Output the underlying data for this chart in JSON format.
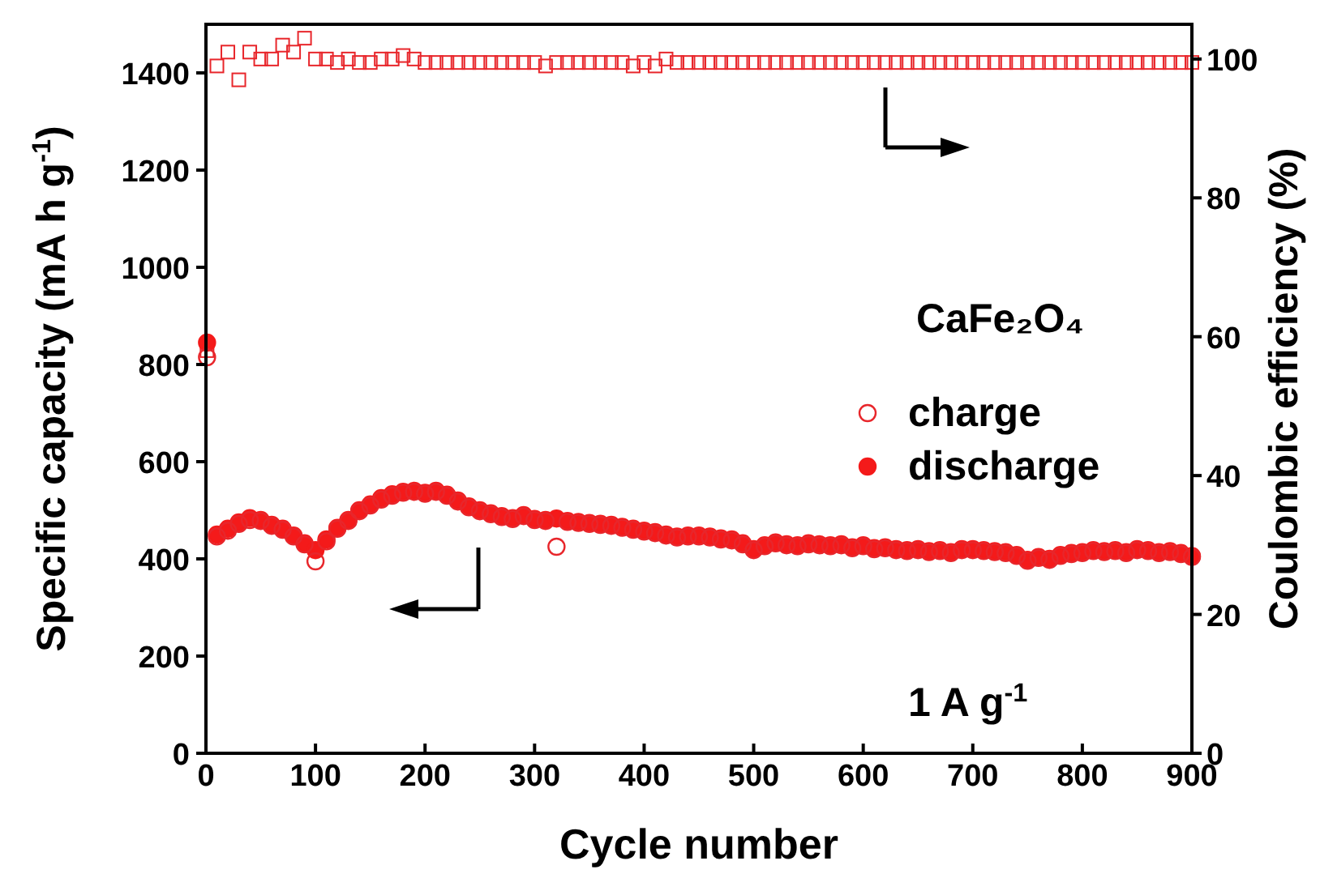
{
  "chart_data": {
    "type": "scatter",
    "xlabel": "Cycle number",
    "ylabel": "Specific capacity (mA h g$^{-1}$)",
    "y2label": "Coulombic efficiency (%)",
    "xlim": [
      0,
      900
    ],
    "xticks": [
      0,
      100,
      200,
      300,
      400,
      500,
      600,
      700,
      800,
      900
    ],
    "ylim": [
      0,
      1500
    ],
    "yticks": [
      0,
      200,
      400,
      600,
      800,
      1000,
      1200,
      1400
    ],
    "y2lim": [
      0,
      105
    ],
    "y2ticks": [
      0,
      20,
      40,
      60,
      80,
      100
    ],
    "x": [
      1,
      10,
      20,
      30,
      40,
      50,
      60,
      70,
      80,
      90,
      100,
      110,
      120,
      130,
      140,
      150,
      160,
      170,
      180,
      190,
      200,
      210,
      220,
      230,
      240,
      250,
      260,
      270,
      280,
      290,
      300,
      310,
      320,
      330,
      340,
      350,
      360,
      370,
      380,
      390,
      400,
      410,
      420,
      430,
      440,
      450,
      460,
      470,
      480,
      490,
      500,
      510,
      520,
      530,
      540,
      550,
      560,
      570,
      580,
      590,
      600,
      610,
      620,
      630,
      640,
      650,
      660,
      670,
      680,
      690,
      700,
      710,
      720,
      730,
      740,
      750,
      760,
      770,
      780,
      790,
      800,
      810,
      820,
      830,
      840,
      850,
      860,
      870,
      880,
      890,
      900
    ],
    "series": [
      {
        "name": "charge",
        "color": "#e8262b",
        "marker": "circle",
        "values": [
          815,
          446,
          458,
          472,
          480,
          478,
          468,
          460,
          446,
          430,
          395,
          436,
          462,
          478,
          498,
          510,
          522,
          530,
          536,
          538,
          534,
          538,
          530,
          518,
          506,
          498,
          492,
          486,
          482,
          488,
          480,
          478,
          425,
          476,
          474,
          472,
          470,
          468,
          464,
          460,
          456,
          453,
          448,
          444,
          446,
          446,
          444,
          440,
          438,
          430,
          418,
          426,
          432,
          428,
          426,
          430,
          428,
          426,
          428,
          422,
          426,
          420,
          422,
          418,
          416,
          418,
          414,
          416,
          412,
          418,
          418,
          416,
          414,
          412,
          406,
          396,
          402,
          398,
          406,
          410,
          412,
          416,
          414,
          416,
          412,
          418,
          416,
          412,
          414,
          410,
          404
        ]
      },
      {
        "name": "discharge",
        "color": "#f41a1a",
        "marker": "circle",
        "values": [
          845,
          450,
          462,
          475,
          484,
          480,
          470,
          462,
          448,
          432,
          418,
          440,
          464,
          480,
          500,
          512,
          525,
          533,
          538,
          540,
          536,
          540,
          532,
          520,
          508,
          500,
          494,
          488,
          484,
          490,
          482,
          480,
          483,
          478,
          476,
          474,
          472,
          470,
          466,
          462,
          458,
          455,
          450,
          446,
          448,
          448,
          446,
          442,
          440,
          432,
          420,
          428,
          434,
          430,
          428,
          432,
          430,
          428,
          430,
          424,
          428,
          422,
          424,
          420,
          418,
          420,
          416,
          418,
          414,
          420,
          420,
          418,
          416,
          414,
          408,
          398,
          404,
          400,
          408,
          412,
          414,
          418,
          416,
          418,
          414,
          420,
          418,
          414,
          416,
          412,
          406
        ]
      },
      {
        "color": "#e8262b",
        "marker": "square",
        "axis": "y2",
        "values": [
          58,
          99,
          101,
          97,
          101,
          100,
          100,
          102,
          101,
          103,
          100,
          100,
          99.5,
          100,
          99.5,
          99.5,
          100,
          100,
          100.5,
          100,
          99.5,
          99.5,
          99.5,
          99.5,
          99.5,
          99.5,
          99.5,
          99.5,
          99.5,
          99.5,
          99.5,
          99,
          99.5,
          99.5,
          99.5,
          99.5,
          99.5,
          99.5,
          99.5,
          99,
          99.5,
          99,
          100,
          99.5,
          99.5,
          99.5,
          99.5,
          99.5,
          99.5,
          99.5,
          99.5,
          99.5,
          99.5,
          99.5,
          99.5,
          99.5,
          99.5,
          99.5,
          99.5,
          99.5,
          99.5,
          99.5,
          99.5,
          99.5,
          99.5,
          99.5,
          99.5,
          99.5,
          99.5,
          99.5,
          99.5,
          99.5,
          99.5,
          99.5,
          99.5,
          99.5,
          99.5,
          99.5,
          99.5,
          99.5,
          99.5,
          99.5,
          99.5,
          99.5,
          99.5,
          99.5,
          99.5,
          99.5,
          99.5,
          99.5,
          99.5
        ]
      }
    ],
    "legend": "right",
    "annotations": [
      "CaFe₂O₄",
      "1 A g$^{-1}$"
    ]
  }
}
